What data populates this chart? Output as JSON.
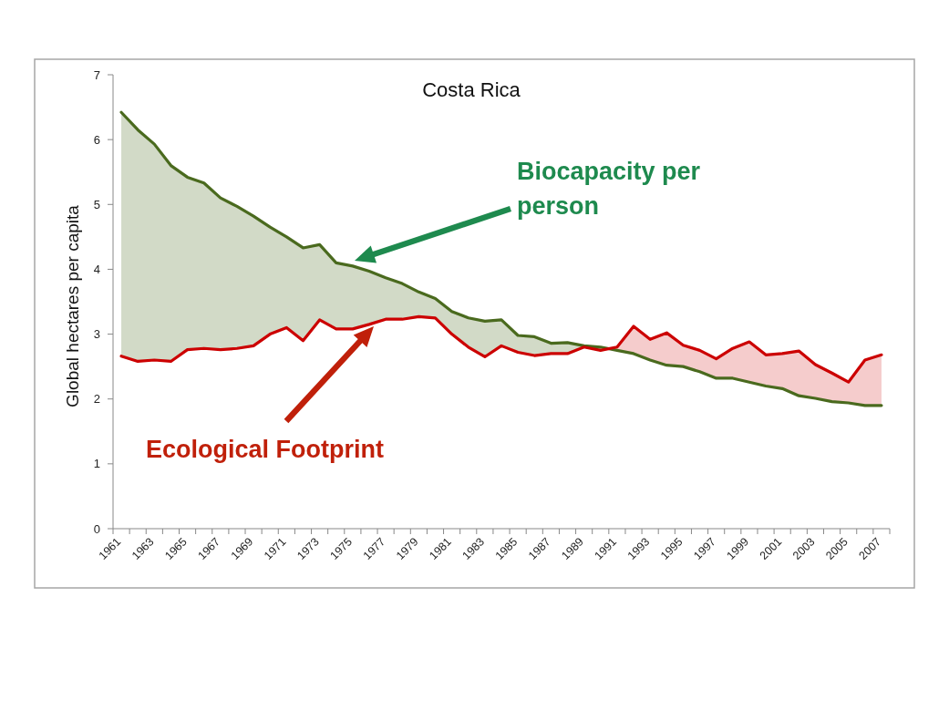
{
  "chart_data": {
    "type": "line",
    "title": "Costa Rica",
    "ylabel": "Global hectares per capita",
    "categories": [
      "1961",
      null,
      "1963",
      null,
      "1965",
      null,
      "1967",
      null,
      "1969",
      null,
      "1971",
      null,
      "1973",
      null,
      "1975",
      null,
      "1977",
      null,
      "1979",
      null,
      "1981",
      null,
      "1983",
      null,
      "1985",
      null,
      "1987",
      null,
      "1989",
      null,
      "1991",
      null,
      "1993",
      null,
      "1995",
      null,
      "1997",
      null,
      "1999",
      null,
      "2001",
      null,
      "2003",
      null,
      "2005",
      null,
      "2007"
    ],
    "series": [
      {
        "color": "#4a6a1e",
        "values": [
          6.42,
          6.15,
          5.93,
          5.6,
          5.42,
          5.33,
          5.1,
          4.97,
          4.82,
          4.65,
          4.5,
          4.33,
          4.38,
          4.1,
          4.05,
          3.97,
          3.87,
          3.78,
          3.65,
          3.55,
          3.35,
          3.25,
          3.2,
          3.22,
          2.98,
          2.96,
          2.86,
          2.87,
          2.82,
          2.8,
          2.75,
          2.7,
          2.6,
          2.52,
          2.5,
          2.42,
          2.32,
          2.32,
          2.26,
          2.2,
          2.16,
          2.05,
          2.01,
          1.96,
          1.94,
          1.9,
          1.9
        ],
        "lower": [
          2.66,
          2.58,
          2.6,
          2.58,
          2.76,
          2.78,
          2.76,
          2.78,
          2.82,
          3.0,
          3.1,
          2.9,
          3.22,
          3.08,
          3.08,
          3.15,
          3.23,
          3.23,
          3.27,
          3.25,
          3.0,
          2.8,
          2.65,
          2.82,
          2.72,
          2.67,
          2.7,
          2.7,
          2.8,
          2.75,
          2.8,
          null,
          null,
          null,
          null,
          null,
          null,
          null,
          null,
          null,
          null,
          null,
          null,
          null,
          null,
          null,
          null
        ],
        "upper": [
          6.42,
          6.15,
          5.93,
          5.6,
          5.42,
          5.33,
          5.1,
          4.97,
          4.82,
          4.65,
          4.5,
          4.33,
          4.38,
          4.1,
          4.05,
          3.97,
          3.87,
          3.78,
          3.65,
          3.55,
          3.35,
          3.25,
          3.2,
          3.22,
          2.98,
          2.96,
          2.86,
          2.87,
          2.82,
          2.8,
          2.75,
          null,
          null,
          null,
          null,
          null,
          null,
          null,
          null,
          null,
          null,
          null,
          null,
          null,
          null,
          null,
          null
        ]
      },
      {
        "color": "#cc0000",
        "values": [
          2.66,
          2.58,
          2.6,
          2.58,
          2.76,
          2.78,
          2.76,
          2.78,
          2.82,
          3.0,
          3.1,
          2.9,
          3.22,
          3.08,
          3.08,
          3.15,
          3.23,
          3.23,
          3.27,
          3.25,
          3.0,
          2.8,
          2.65,
          2.82,
          2.72,
          2.67,
          2.7,
          2.7,
          2.8,
          2.75,
          2.8,
          3.12,
          2.92,
          3.02,
          2.83,
          2.75,
          2.62,
          2.78,
          2.88,
          2.68,
          2.7,
          2.74,
          2.53,
          2.4,
          2.26,
          2.6,
          2.68
        ],
        "lower": [
          null,
          null,
          null,
          null,
          null,
          null,
          null,
          null,
          null,
          null,
          null,
          null,
          null,
          null,
          null,
          null,
          null,
          null,
          null,
          null,
          null,
          null,
          null,
          null,
          null,
          null,
          null,
          null,
          null,
          2.8,
          2.75,
          2.7,
          2.6,
          2.52,
          2.5,
          2.42,
          2.32,
          2.32,
          2.26,
          2.2,
          2.16,
          2.05,
          2.01,
          1.96,
          1.94,
          1.9,
          1.9
        ],
        "upper": [
          null,
          null,
          null,
          null,
          null,
          null,
          null,
          null,
          null,
          null,
          null,
          null,
          null,
          null,
          null,
          null,
          null,
          null,
          null,
          null,
          null,
          null,
          null,
          null,
          null,
          null,
          null,
          null,
          null,
          2.75,
          2.8,
          3.12,
          2.92,
          3.02,
          2.83,
          2.75,
          2.62,
          2.78,
          2.88,
          2.68,
          2.7,
          2.74,
          2.53,
          2.4,
          2.26,
          2.6,
          2.68
        ]
      }
    ],
    "annotations": [
      "Biocapacity per person",
      "Ecological Footprint"
    ],
    "ylim": [
      0,
      7
    ],
    "yticks": [
      0,
      1,
      2,
      3,
      4,
      5,
      6,
      7
    ],
    "grid": false,
    "marker": "none",
    "line_style": "solid"
  }
}
